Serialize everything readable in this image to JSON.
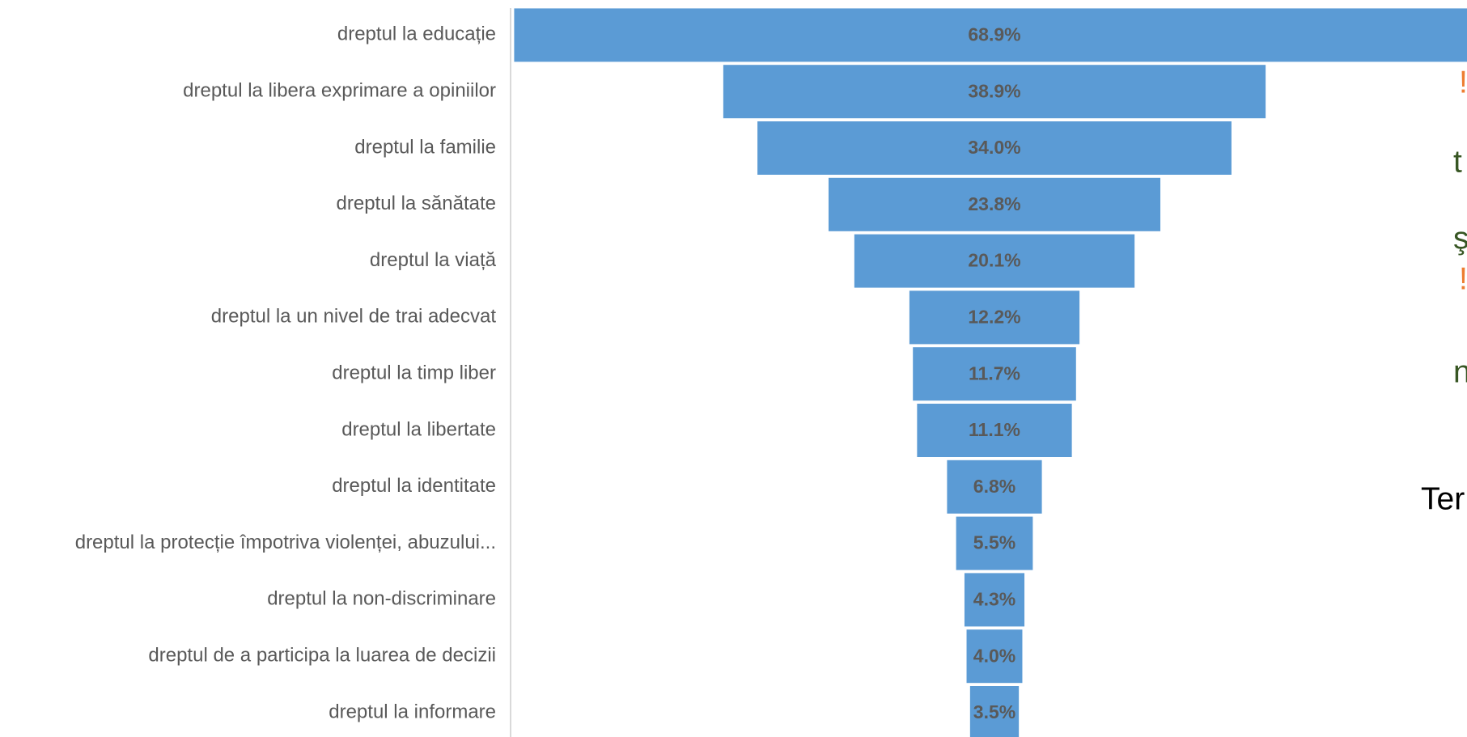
{
  "chart_data": {
    "type": "funnel",
    "categories": [
      "dreptul la educație",
      "dreptul la libera exprimare a opiniilor",
      "dreptul la familie",
      "dreptul la sănătate",
      "dreptul la viață",
      "dreptul la un nivel de trai adecvat",
      "dreptul la timp liber",
      "dreptul la libertate",
      "dreptul la identitate",
      "dreptul la protecție împotriva violenței, abuzului...",
      "dreptul la non-discriminare",
      "dreptul de a participa la luarea de decizii",
      "dreptul la informare"
    ],
    "values": [
      68.9,
      38.9,
      34.0,
      23.8,
      20.1,
      12.2,
      11.7,
      11.1,
      6.8,
      5.5,
      4.3,
      4.0,
      3.5
    ],
    "value_labels": [
      "68.9%",
      "38.9%",
      "34.0%",
      "23.8%",
      "20.1%",
      "12.2%",
      "11.7%",
      "11.1%",
      "6.8%",
      "5.5%",
      "4.3%",
      "4.0%",
      "3.5%"
    ],
    "color": "#5b9bd5"
  },
  "side_text": [
    {
      "text": "!",
      "color": "#ed7d31"
    },
    {
      "text": "t",
      "color": "#375623"
    },
    {
      "text": "ş",
      "color": "#375623"
    },
    {
      "text": "!",
      "color": "#ed7d31"
    },
    {
      "text": "n",
      "color": "#375623"
    },
    {
      "text": "Ter",
      "color": "#000000"
    }
  ]
}
